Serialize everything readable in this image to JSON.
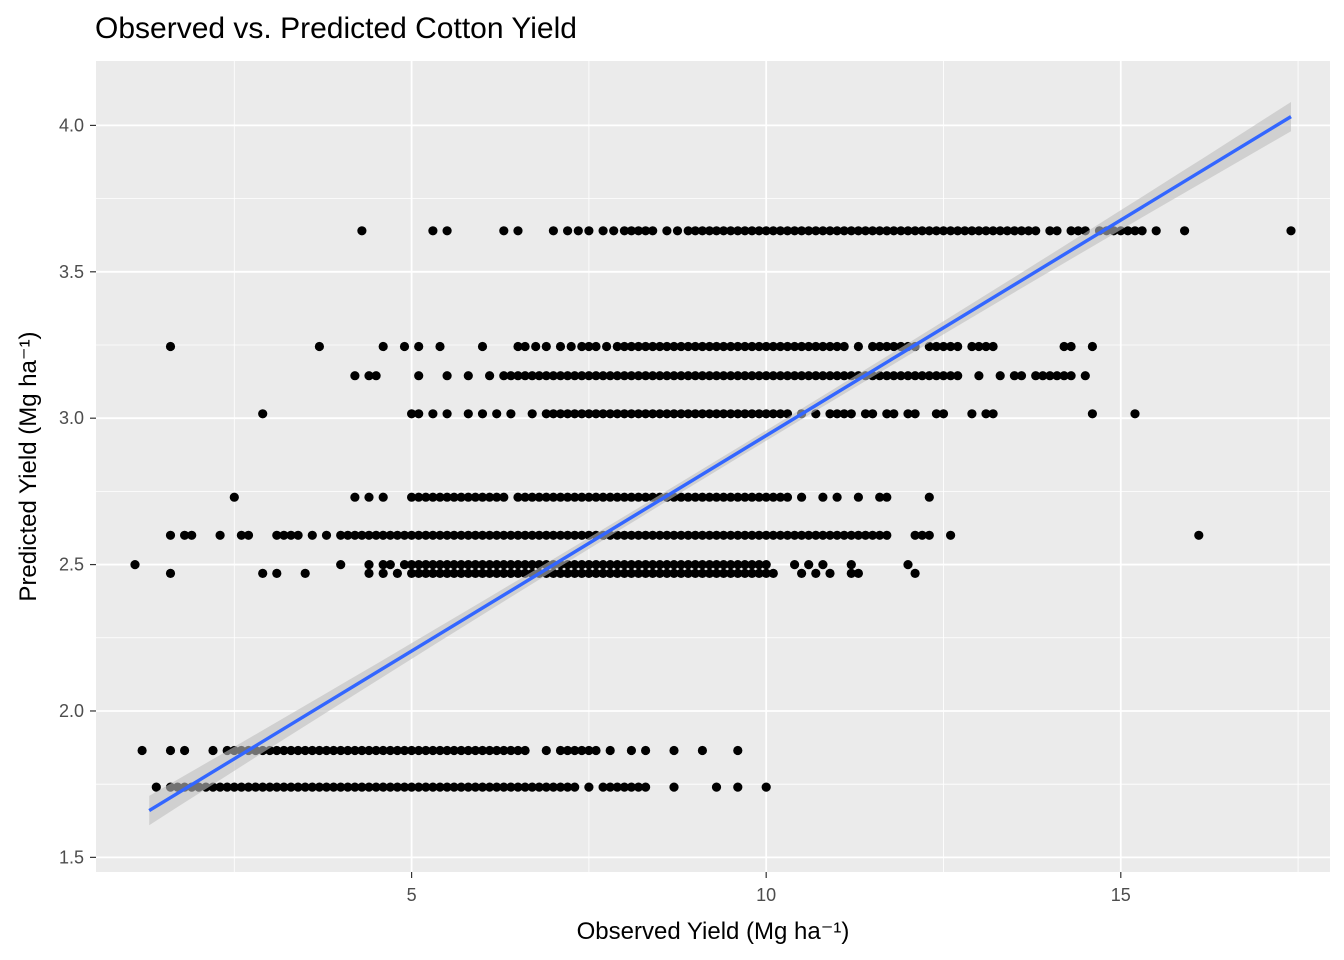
{
  "chart_data": {
    "type": "scatter",
    "title": "Observed vs. Predicted Cotton Yield",
    "xlabel": "Observed Yield (Mg ha⁻¹)",
    "ylabel": "Predicted Yield (Mg ha⁻¹)",
    "xlim": [
      0.55,
      17.95
    ],
    "ylim": [
      1.45,
      4.22
    ],
    "x_ticks": [
      5,
      10,
      15
    ],
    "x_tick_labels": [
      "5",
      "10",
      "15"
    ],
    "y_ticks": [
      1.5,
      2.0,
      2.5,
      3.0,
      3.5,
      4.0
    ],
    "y_tick_labels": [
      "1.5",
      "2.0",
      "2.5",
      "3.0",
      "3.5",
      "4.0"
    ],
    "grid": true,
    "colors": {
      "panel": "#ebebeb",
      "grid": "#ffffff",
      "points": "#000000",
      "trend_line": "#3366ff",
      "confidence_band": "#bebebe"
    },
    "trend": {
      "method": "linear",
      "x": [
        1.3,
        17.4
      ],
      "y": [
        1.66,
        4.03
      ],
      "band_halfwidth_at_ends": 0.05
    },
    "series": [
      {
        "points_by_level": [
          {
            "y": 3.64,
            "x": [
              4.3,
              5.3,
              5.5,
              6.3,
              6.5,
              7.0,
              7.2,
              7.35,
              7.5,
              7.7,
              7.85,
              8.0,
              8.1,
              8.2,
              8.3,
              8.4,
              8.6,
              8.75,
              8.9,
              9.0,
              9.1,
              9.2,
              9.3,
              9.4,
              9.5,
              9.6,
              9.7,
              9.8,
              9.9,
              10.0,
              10.1,
              10.2,
              10.3,
              10.4,
              10.5,
              10.6,
              10.7,
              10.8,
              10.9,
              11.0,
              11.1,
              11.2,
              11.3,
              11.4,
              11.5,
              11.6,
              11.7,
              11.8,
              11.9,
              12.0,
              12.1,
              12.2,
              12.3,
              12.4,
              12.5,
              12.6,
              12.7,
              12.8,
              12.9,
              13.0,
              13.1,
              13.2,
              13.3,
              13.4,
              13.5,
              13.6,
              13.7,
              13.8,
              14.0,
              14.1,
              14.3,
              14.4,
              14.5,
              14.7,
              14.8,
              14.9,
              15.0,
              15.1,
              15.2,
              15.3,
              15.5,
              15.9,
              17.4
            ]
          },
          {
            "y": 3.245,
            "x": [
              1.6,
              3.7,
              4.6,
              4.9,
              5.1,
              5.4,
              6.0,
              6.5,
              6.6,
              6.75,
              6.9,
              7.1,
              7.25,
              7.4,
              7.5,
              7.6,
              7.75,
              7.9,
              8.0,
              8.1,
              8.2,
              8.3,
              8.4,
              8.5,
              8.6,
              8.7,
              8.8,
              8.9,
              9.0,
              9.1,
              9.2,
              9.3,
              9.4,
              9.5,
              9.6,
              9.7,
              9.8,
              9.9,
              10.0,
              10.1,
              10.2,
              10.3,
              10.4,
              10.5,
              10.6,
              10.7,
              10.8,
              10.9,
              11.0,
              11.1,
              11.3,
              11.5,
              11.6,
              11.7,
              11.8,
              11.9,
              12.0,
              12.1,
              12.3,
              12.4,
              12.5,
              12.6,
              12.7,
              12.9,
              13.0,
              13.1,
              13.2,
              14.2,
              14.3,
              14.6
            ]
          },
          {
            "y": 3.145,
            "x": [
              4.2,
              4.4,
              4.5,
              5.1,
              5.5,
              5.8,
              6.1,
              6.3,
              6.4,
              6.5,
              6.6,
              6.7,
              6.8,
              6.9,
              7.0,
              7.1,
              7.2,
              7.3,
              7.4,
              7.5,
              7.6,
              7.7,
              7.8,
              7.9,
              8.0,
              8.1,
              8.2,
              8.3,
              8.4,
              8.5,
              8.6,
              8.7,
              8.8,
              8.9,
              9.0,
              9.1,
              9.2,
              9.3,
              9.4,
              9.5,
              9.6,
              9.7,
              9.8,
              9.9,
              10.0,
              10.1,
              10.2,
              10.3,
              10.4,
              10.5,
              10.6,
              10.7,
              10.8,
              10.9,
              11.0,
              11.1,
              11.2,
              11.3,
              11.4,
              11.5,
              11.6,
              11.7,
              11.8,
              11.9,
              12.0,
              12.1,
              12.2,
              12.3,
              12.4,
              12.5,
              12.6,
              12.7,
              13.0,
              13.3,
              13.5,
              13.6,
              13.8,
              13.9,
              14.0,
              14.1,
              14.2,
              14.3,
              14.5
            ]
          },
          {
            "y": 3.015,
            "x": [
              2.9,
              5.0,
              5.1,
              5.3,
              5.5,
              5.8,
              6.0,
              6.2,
              6.4,
              6.7,
              6.9,
              7.0,
              7.1,
              7.2,
              7.3,
              7.4,
              7.5,
              7.6,
              7.7,
              7.8,
              7.9,
              8.0,
              8.1,
              8.2,
              8.3,
              8.4,
              8.5,
              8.6,
              8.7,
              8.8,
              8.9,
              9.0,
              9.1,
              9.2,
              9.3,
              9.4,
              9.5,
              9.6,
              9.7,
              9.8,
              9.9,
              10.0,
              10.1,
              10.2,
              10.3,
              10.5,
              10.7,
              10.9,
              11.0,
              11.1,
              11.2,
              11.4,
              11.5,
              11.7,
              11.8,
              12.0,
              12.1,
              12.4,
              12.5,
              12.9,
              13.1,
              13.2,
              14.6,
              15.2
            ]
          },
          {
            "y": 2.73,
            "x": [
              2.5,
              4.2,
              4.4,
              4.6,
              5.0,
              5.1,
              5.2,
              5.3,
              5.4,
              5.5,
              5.6,
              5.7,
              5.8,
              5.9,
              6.0,
              6.1,
              6.2,
              6.3,
              6.5,
              6.6,
              6.7,
              6.8,
              6.9,
              7.0,
              7.1,
              7.2,
              7.3,
              7.4,
              7.5,
              7.6,
              7.7,
              7.8,
              7.9,
              8.0,
              8.1,
              8.2,
              8.3,
              8.4,
              8.5,
              8.6,
              8.7,
              8.8,
              8.9,
              9.0,
              9.1,
              9.2,
              9.3,
              9.4,
              9.5,
              9.6,
              9.7,
              9.8,
              9.9,
              10.0,
              10.1,
              10.2,
              10.3,
              10.5,
              10.8,
              11.0,
              11.3,
              11.6,
              11.7,
              12.3
            ]
          },
          {
            "y": 2.6,
            "x": [
              1.6,
              1.8,
              1.9,
              2.3,
              2.6,
              2.7,
              3.1,
              3.2,
              3.3,
              3.4,
              3.6,
              3.8,
              4.0,
              4.1,
              4.2,
              4.3,
              4.4,
              4.5,
              4.6,
              4.7,
              4.8,
              4.9,
              5.0,
              5.1,
              5.2,
              5.3,
              5.4,
              5.5,
              5.6,
              5.7,
              5.8,
              5.9,
              6.0,
              6.1,
              6.2,
              6.3,
              6.4,
              6.5,
              6.6,
              6.7,
              6.8,
              6.9,
              7.0,
              7.1,
              7.2,
              7.3,
              7.4,
              7.5,
              7.6,
              7.7,
              7.8,
              7.9,
              8.0,
              8.1,
              8.2,
              8.3,
              8.4,
              8.5,
              8.6,
              8.7,
              8.8,
              8.9,
              9.0,
              9.1,
              9.2,
              9.3,
              9.4,
              9.5,
              9.6,
              9.7,
              9.8,
              9.9,
              10.0,
              10.1,
              10.2,
              10.3,
              10.4,
              10.5,
              10.6,
              10.7,
              10.8,
              10.9,
              11.0,
              11.1,
              11.2,
              11.3,
              11.4,
              11.5,
              11.6,
              11.7,
              12.1,
              12.2,
              12.3,
              12.6,
              16.1
            ]
          },
          {
            "y": 2.5,
            "x": [
              1.1,
              4.0,
              4.4,
              4.6,
              4.7,
              4.9,
              5.0,
              5.1,
              5.2,
              5.3,
              5.4,
              5.5,
              5.6,
              5.7,
              5.8,
              5.9,
              6.0,
              6.1,
              6.2,
              6.3,
              6.4,
              6.5,
              6.6,
              6.7,
              6.8,
              6.9,
              7.0,
              7.1,
              7.2,
              7.3,
              7.4,
              7.5,
              7.6,
              7.7,
              7.8,
              7.9,
              8.0,
              8.1,
              8.2,
              8.3,
              8.4,
              8.5,
              8.6,
              8.7,
              8.8,
              8.9,
              9.0,
              9.1,
              9.2,
              9.3,
              9.4,
              9.5,
              9.6,
              9.7,
              9.8,
              9.9,
              10.0,
              10.4,
              10.6,
              10.8,
              11.2,
              12.0
            ]
          },
          {
            "y": 2.47,
            "x": [
              1.6,
              2.9,
              3.1,
              3.5,
              4.4,
              4.6,
              4.8,
              5.0,
              5.1,
              5.2,
              5.3,
              5.4,
              5.5,
              5.6,
              5.7,
              5.8,
              5.9,
              6.0,
              6.1,
              6.2,
              6.3,
              6.4,
              6.5,
              6.6,
              6.7,
              6.8,
              6.9,
              7.0,
              7.1,
              7.2,
              7.3,
              7.4,
              7.5,
              7.6,
              7.7,
              7.8,
              7.9,
              8.0,
              8.1,
              8.2,
              8.3,
              8.4,
              8.5,
              8.6,
              8.7,
              8.8,
              8.9,
              9.0,
              9.1,
              9.2,
              9.3,
              9.4,
              9.5,
              9.6,
              9.7,
              9.8,
              9.9,
              10.0,
              10.1,
              10.5,
              10.7,
              10.9,
              11.2,
              11.3,
              12.1
            ]
          },
          {
            "y": 1.865,
            "x": [
              1.2,
              1.6,
              1.8,
              2.2,
              2.4,
              2.5,
              2.6,
              2.7,
              2.8,
              2.9,
              3.0,
              3.1,
              3.2,
              3.3,
              3.4,
              3.5,
              3.6,
              3.7,
              3.8,
              3.9,
              4.0,
              4.1,
              4.2,
              4.3,
              4.4,
              4.5,
              4.6,
              4.7,
              4.8,
              4.9,
              5.0,
              5.1,
              5.2,
              5.3,
              5.4,
              5.5,
              5.6,
              5.7,
              5.8,
              5.9,
              6.0,
              6.1,
              6.2,
              6.3,
              6.4,
              6.5,
              6.6,
              6.9,
              7.1,
              7.2,
              7.3,
              7.4,
              7.5,
              7.6,
              7.8,
              8.1,
              8.3,
              8.7,
              9.1,
              9.6
            ]
          },
          {
            "y": 1.74,
            "x": [
              1.4,
              1.6,
              1.7,
              1.8,
              1.9,
              2.0,
              2.1,
              2.2,
              2.3,
              2.4,
              2.5,
              2.6,
              2.7,
              2.8,
              2.9,
              3.0,
              3.1,
              3.2,
              3.3,
              3.4,
              3.5,
              3.6,
              3.7,
              3.8,
              3.9,
              4.0,
              4.1,
              4.2,
              4.3,
              4.4,
              4.5,
              4.6,
              4.7,
              4.8,
              4.9,
              5.0,
              5.1,
              5.2,
              5.3,
              5.4,
              5.5,
              5.6,
              5.7,
              5.8,
              5.9,
              6.0,
              6.1,
              6.2,
              6.3,
              6.4,
              6.5,
              6.6,
              6.7,
              6.8,
              6.9,
              7.0,
              7.1,
              7.2,
              7.3,
              7.5,
              7.7,
              7.8,
              7.9,
              8.0,
              8.1,
              8.2,
              8.3,
              8.7,
              9.3,
              9.6,
              10.0
            ]
          }
        ]
      }
    ]
  }
}
